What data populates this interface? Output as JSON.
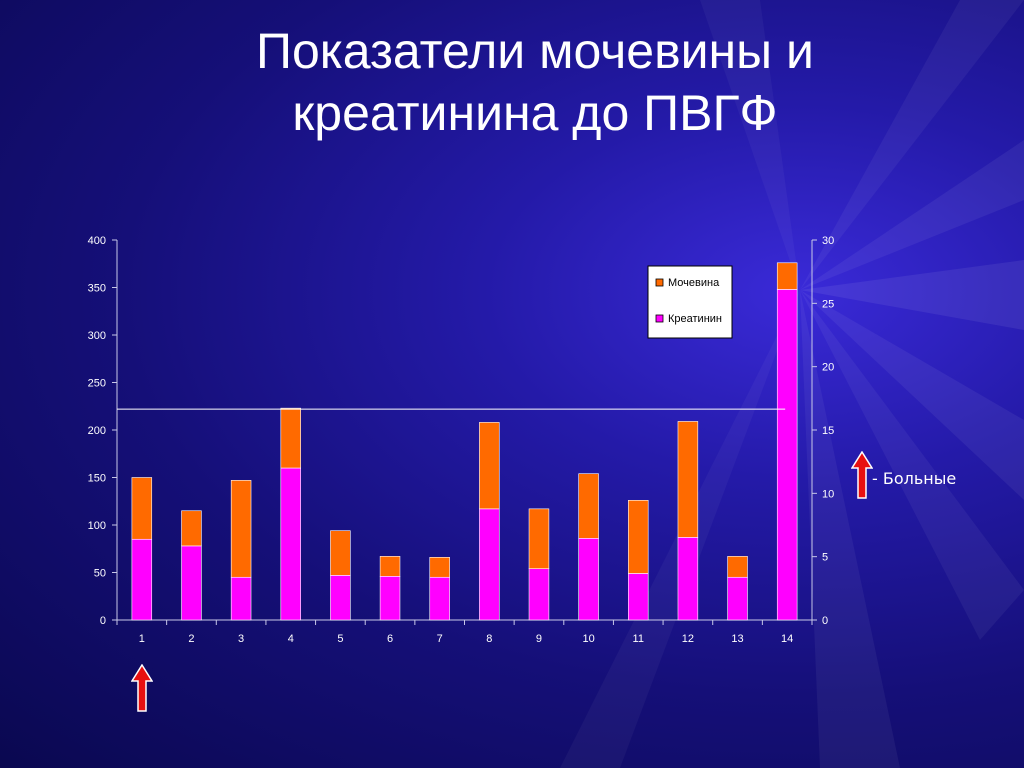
{
  "title_lines": [
    "Показатели мочевины и",
    "креатинина до ПВГФ"
  ],
  "side_note": "- Больные",
  "colors": {
    "urea": "#ff6a00",
    "creatinine": "#ff00ff",
    "arrow": "#e81010"
  },
  "icons": [
    "arrow-up-icon"
  ],
  "chart_data": {
    "type": "bar",
    "stacked": true,
    "categories": [
      "1",
      "2",
      "3",
      "4",
      "5",
      "6",
      "7",
      "8",
      "9",
      "10",
      "11",
      "12",
      "13",
      "14"
    ],
    "series": [
      {
        "name": "Креатинин",
        "values": [
          85,
          78,
          45,
          160,
          47,
          46,
          45,
          117,
          54,
          86,
          49,
          87,
          45,
          348
        ],
        "color": "#ff00ff"
      },
      {
        "name": "Мочевина",
        "values": [
          65,
          37,
          102,
          63,
          47,
          21,
          21,
          91,
          63,
          68,
          77,
          122,
          22,
          28
        ],
        "color": "#ff6a00"
      }
    ],
    "yticks_left": [
      0,
      50,
      100,
      150,
      200,
      250,
      300,
      350,
      400
    ],
    "yticks_right": [
      0,
      5,
      10,
      15,
      20,
      25,
      30
    ],
    "ylim": [
      0,
      400
    ],
    "ylim_right": [
      0,
      30
    ],
    "reference_line": 222,
    "legend": [
      "Мочевина",
      "Креатинин"
    ],
    "legend_position": "top-right",
    "grid": false,
    "marked_category": "1"
  }
}
